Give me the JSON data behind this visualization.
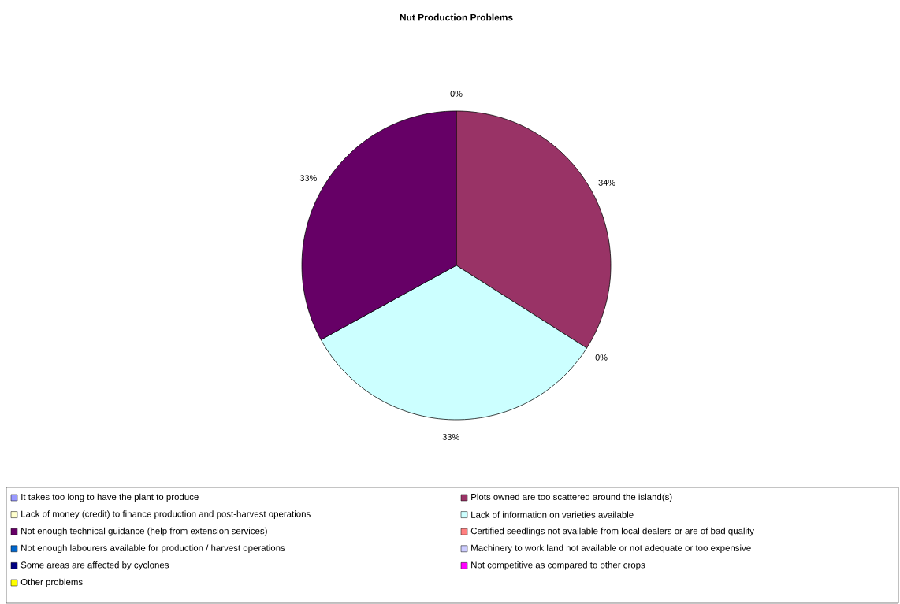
{
  "chart_data": {
    "type": "pie",
    "title": "Nut Production Problems",
    "categories": [
      "It takes too long to have the plant to produce",
      "Plots owned are too scattered around the island(s)",
      "Lack of money (credit) to finance production and post-harvest operations",
      "Lack of information on varieties available",
      "Not enough technical guidance (help from extension services)",
      "Certified seedlings not available from local dealers or are of bad quality",
      "Not enough labourers available for production / harvest operations",
      "Machinery to work land not available or not adequate or too expensive",
      "Some areas are affected by cyclones",
      "Not competitive as compared to other crops",
      "Other problems"
    ],
    "values": [
      0,
      34,
      0,
      33,
      33,
      0,
      0,
      0,
      0,
      0,
      0
    ],
    "value_labels": [
      "0%",
      "34%",
      "0%",
      "33%",
      "33%",
      null,
      null,
      null,
      null,
      null,
      null
    ],
    "colors": [
      "#9999ff",
      "#993366",
      "#ffffcc",
      "#ccffff",
      "#660066",
      "#ff8080",
      "#0066cc",
      "#ccccff",
      "#000080",
      "#ff00ff",
      "#ffff00"
    ],
    "legend": "bottom"
  }
}
